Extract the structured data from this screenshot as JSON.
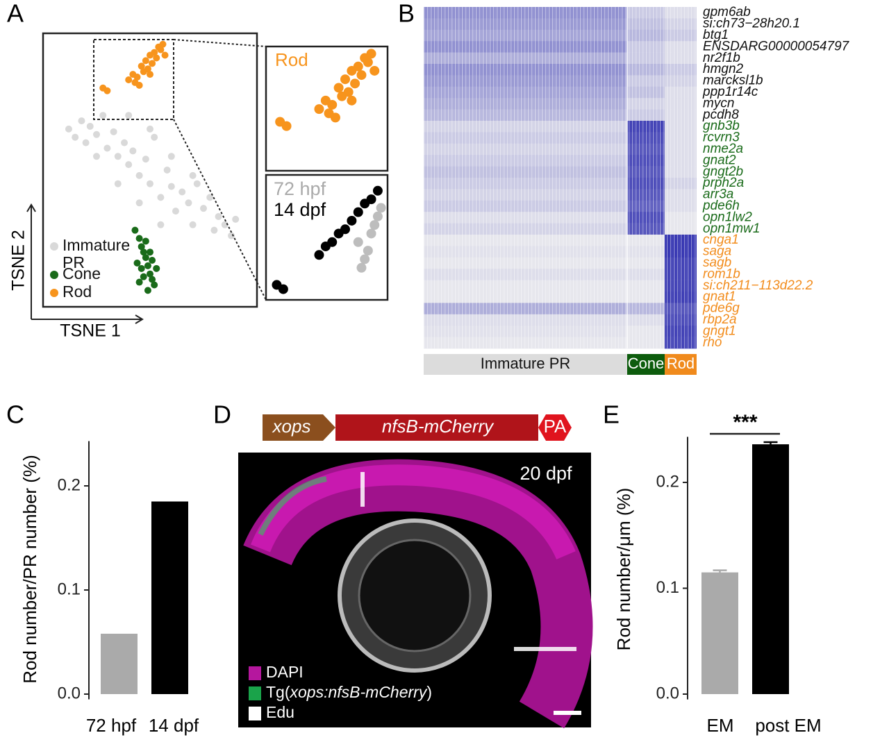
{
  "panels": [
    "A",
    "B",
    "C",
    "D",
    "E"
  ],
  "chart_data": [
    {
      "type": "scatter",
      "xlabel": "TSNE 1",
      "ylabel": "TSNE 2",
      "xlim": [
        0,
        100
      ],
      "ylim": [
        0,
        100
      ],
      "series": [
        {
          "name": "Immature PR",
          "color": "#d9d9d9",
          "x": [
            12,
            15,
            18,
            20,
            22,
            25,
            28,
            30,
            33,
            35,
            38,
            40,
            42,
            45,
            48,
            50,
            52,
            55,
            58,
            60,
            62,
            65,
            68,
            70,
            72,
            75,
            78,
            80,
            82,
            85,
            88,
            90,
            25,
            35,
            45,
            55,
            50,
            40,
            60,
            70
          ],
          "y": [
            65,
            62,
            68,
            60,
            66,
            63,
            70,
            58,
            64,
            55,
            60,
            52,
            57,
            48,
            54,
            45,
            62,
            40,
            50,
            44,
            35,
            42,
            38,
            30,
            45,
            36,
            40,
            28,
            33,
            30,
            26,
            32,
            55,
            45,
            38,
            30,
            65,
            70,
            55,
            48
          ]
        },
        {
          "name": "Cone",
          "color": "#1a6b1a",
          "x": [
            43,
            45,
            46,
            47,
            48,
            49,
            50,
            51,
            52,
            44,
            46,
            48,
            50,
            47,
            49,
            51,
            45,
            53
          ],
          "y": [
            28,
            25,
            22,
            20,
            18,
            15,
            12,
            10,
            8,
            16,
            14,
            24,
            20,
            11,
            6,
            17,
            9,
            14
          ]
        },
        {
          "name": "Rod",
          "color": "#f7941d",
          "x": [
            28,
            30,
            40,
            42,
            44,
            46,
            47,
            48,
            49,
            50,
            51,
            52,
            53,
            54,
            55,
            56,
            50,
            45,
            43,
            57
          ],
          "y": [
            80,
            79,
            83,
            85,
            84,
            88,
            86,
            90,
            87,
            92,
            89,
            93,
            91,
            95,
            94,
            96,
            85,
            81,
            82,
            92
          ]
        }
      ]
    },
    {
      "type": "scatter",
      "xlim": [
        23.7,
        61
      ],
      "ylim": [
        68.5,
        97.7
      ],
      "series": [
        {
          "name": "72 hpf",
          "color": "#bdbdbd",
          "x": [
            52,
            54,
            55,
            56,
            57,
            58,
            53,
            59
          ],
          "y": [
            82,
            78,
            80,
            84,
            86,
            88,
            76,
            90
          ]
        },
        {
          "name": "14 dpf",
          "color": "#000000",
          "x": [
            27,
            29,
            40,
            42,
            44,
            46,
            48,
            50,
            52,
            54,
            56,
            58
          ],
          "y": [
            72,
            71,
            79,
            81,
            82,
            84,
            85,
            87,
            89,
            91,
            92,
            94
          ]
        }
      ]
    },
    {
      "type": "heatmap",
      "columns": [
        "Immature PR",
        "Cone",
        "Rod"
      ],
      "column_colors": [
        "#dcdcdc",
        "#0d5c0d",
        "#f08a1c"
      ],
      "column_text_colors": [
        "#111111",
        "#ffffff",
        "#ffffff"
      ],
      "color_range": [
        "#efefef",
        "#1c1ca8"
      ],
      "vlim": [
        0,
        1
      ],
      "blocks": [
        {
          "label_color": "#111111",
          "genes": [
            "gpm6ab",
            "si:ch73−28h20.1",
            "btg1",
            "ENSDARG00000054797",
            "nr2f1b",
            "hmgn2",
            "marcksl1b",
            "ppp1r14c",
            "mycn",
            "pcdh8"
          ],
          "values": [
            [
              0.5,
              0.2,
              0.1
            ],
            [
              0.45,
              0.25,
              0.15
            ],
            [
              0.4,
              0.3,
              0.2
            ],
            [
              0.5,
              0.2,
              0.1
            ],
            [
              0.35,
              0.2,
              0.1
            ],
            [
              0.5,
              0.3,
              0.2
            ],
            [
              0.45,
              0.2,
              0.15
            ],
            [
              0.4,
              0.25,
              0.1
            ],
            [
              0.35,
              0.15,
              0.1
            ],
            [
              0.3,
              0.2,
              0.1
            ]
          ]
        },
        {
          "label_color": "#1a6b1a",
          "genes": [
            "gnb3b",
            "rcvrn3",
            "nme2a",
            "gnat2",
            "gngt2b",
            "prph2a",
            "arr3a",
            "pde6h",
            "opn1lw2",
            "opn1mw1"
          ],
          "values": [
            [
              0.15,
              0.9,
              0.1
            ],
            [
              0.2,
              0.85,
              0.1
            ],
            [
              0.15,
              0.8,
              0.1
            ],
            [
              0.2,
              0.85,
              0.1
            ],
            [
              0.25,
              0.8,
              0.1
            ],
            [
              0.2,
              0.85,
              0.15
            ],
            [
              0.15,
              0.8,
              0.1
            ],
            [
              0.2,
              0.75,
              0.1
            ],
            [
              0.1,
              0.85,
              0.05
            ],
            [
              0.15,
              0.8,
              0.05
            ]
          ]
        },
        {
          "label_color": "#f28c1c",
          "genes": [
            "cnga1",
            "saga",
            "sagb",
            "rom1b",
            "si:ch211−113d22.2",
            "gnat1",
            "pde6g",
            "rbp2a",
            "gngt1",
            "rho"
          ],
          "values": [
            [
              0.05,
              0.05,
              0.95
            ],
            [
              0.08,
              0.08,
              0.95
            ],
            [
              0.05,
              0.05,
              0.9
            ],
            [
              0.1,
              0.1,
              0.9
            ],
            [
              0.05,
              0.05,
              0.9
            ],
            [
              0.05,
              0.05,
              0.92
            ],
            [
              0.35,
              0.3,
              0.8
            ],
            [
              0.1,
              0.1,
              0.85
            ],
            [
              0.08,
              0.05,
              0.9
            ],
            [
              0.05,
              0.05,
              0.88
            ]
          ]
        }
      ]
    },
    {
      "type": "bar",
      "ylabel": "Rod number/PR number (%)",
      "categories": [
        "72 hpf",
        "14 dpf"
      ],
      "values": [
        0.058,
        0.185
      ],
      "colors": [
        "#aaaaaa",
        "#000000"
      ],
      "ylim": [
        -0.005,
        0.243
      ],
      "yticks": [
        {
          "value": 0,
          "label": "0.0"
        },
        0.1,
        0.2
      ]
    },
    {
      "type": "bar",
      "ylabel": "Rod number/μm (%)",
      "categories": [
        "EM",
        "post EM"
      ],
      "values": [
        0.115,
        0.236
      ],
      "errors": [
        0.002,
        0.002
      ],
      "colors": [
        "#aaaaaa",
        "#000000"
      ],
      "ylim": [
        -0.005,
        0.243
      ],
      "yticks": [
        {
          "value": 0,
          "label": "0.0"
        },
        0.1,
        0.2
      ],
      "annotation": "***"
    }
  ],
  "construct": [
    {
      "label": "xops",
      "color": "#8b4f1e"
    },
    {
      "label": "nfsB-mCherry",
      "color": "#b0141a"
    },
    {
      "label": "PA",
      "color": "#e0141e"
    }
  ],
  "image": {
    "label": "20 dpf",
    "legend": [
      {
        "parts": [
          "DAPI"
        ],
        "color": "#b5179e"
      },
      {
        "parts": [
          "Tg(",
          "xops:nfsB-mCherry",
          ")"
        ],
        "color": "#1aa34a"
      },
      {
        "parts": [
          "Edu"
        ],
        "color": "#ffffff"
      }
    ]
  }
}
